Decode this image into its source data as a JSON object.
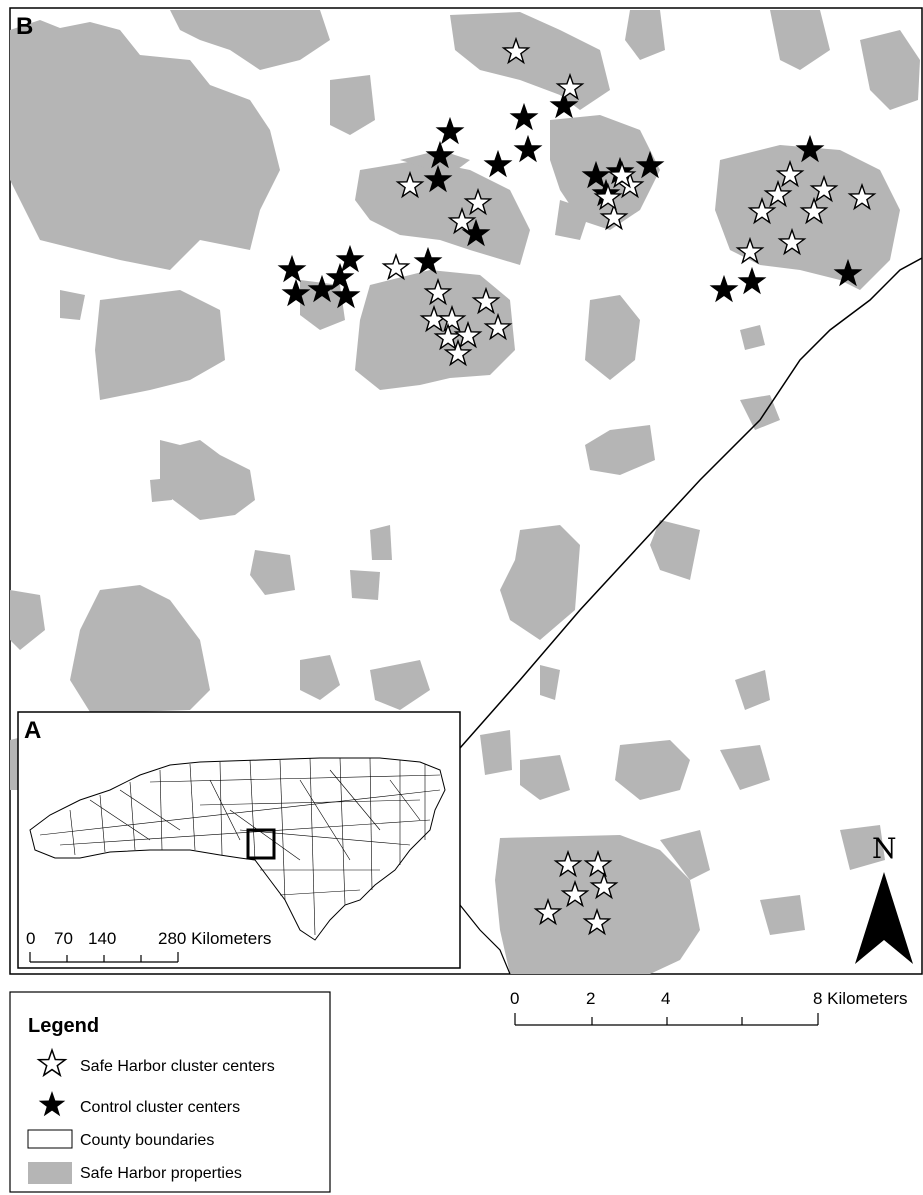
{
  "panels": {
    "main_label": "B",
    "inset_label": "A"
  },
  "main_scale_bar": {
    "ticks": [
      "0",
      "2",
      "4"
    ],
    "end_label": "8 Kilometers"
  },
  "inset_scale_bar": {
    "labels": [
      "0",
      "70",
      "140"
    ],
    "end_label": "280 Kilometers"
  },
  "north_arrow": {
    "label": "N"
  },
  "legend": {
    "title": "Legend",
    "items": [
      {
        "label": "Safe Harbor cluster centers",
        "symbol": "open-star-icon"
      },
      {
        "label": "Control cluster centers",
        "symbol": "filled-star-icon"
      },
      {
        "label": "County boundaries",
        "symbol": "white-rectangle"
      },
      {
        "label": "Safe Harbor properties",
        "symbol": "gray-rectangle"
      }
    ]
  },
  "colors": {
    "property_fill": "#b5b5b5",
    "background": "#ffffff",
    "outline": "#000000"
  },
  "markers": {
    "safe_harbor_count": 32,
    "control_count": 23
  }
}
